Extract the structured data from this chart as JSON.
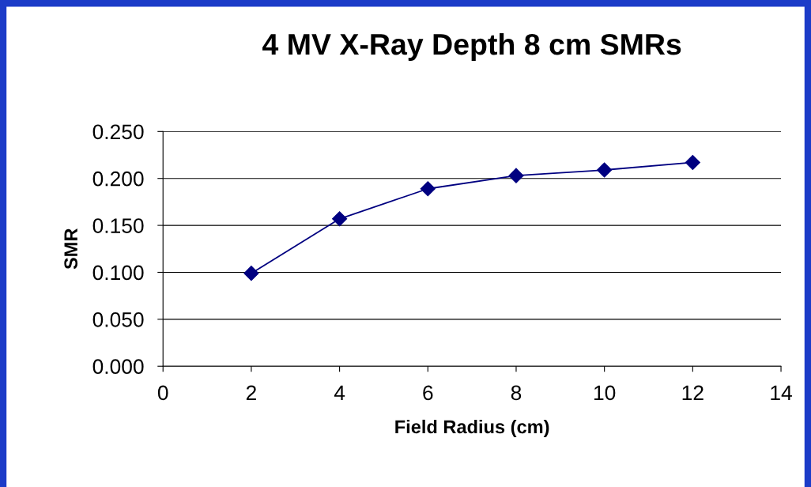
{
  "chart_data": {
    "type": "line",
    "title": "4 MV X-Ray Depth 8 cm SMRs",
    "xlabel": "Field Radius (cm)",
    "ylabel": "SMR",
    "x": [
      2,
      4,
      6,
      8,
      10,
      12
    ],
    "series": [
      {
        "color": "#000080",
        "values": [
          0.099,
          0.157,
          0.189,
          0.203,
          0.209,
          0.217
        ]
      }
    ],
    "xlim": [
      0,
      14
    ],
    "xticks": [
      0,
      2,
      4,
      6,
      8,
      10,
      12,
      14
    ],
    "ylim": [
      0,
      0.25
    ],
    "yticks": [
      {
        "value": 0,
        "label": "0.000"
      },
      {
        "value": 0.05,
        "label": "0.050"
      },
      {
        "value": 0.1,
        "label": "0.100"
      },
      {
        "value": 0.15,
        "label": "0.150"
      },
      {
        "value": 0.2,
        "label": "0.200"
      },
      {
        "value": 0.25,
        "label": "0.250"
      }
    ],
    "grid": "y",
    "legend": false,
    "marker": "diamond",
    "line_style": "solid"
  }
}
